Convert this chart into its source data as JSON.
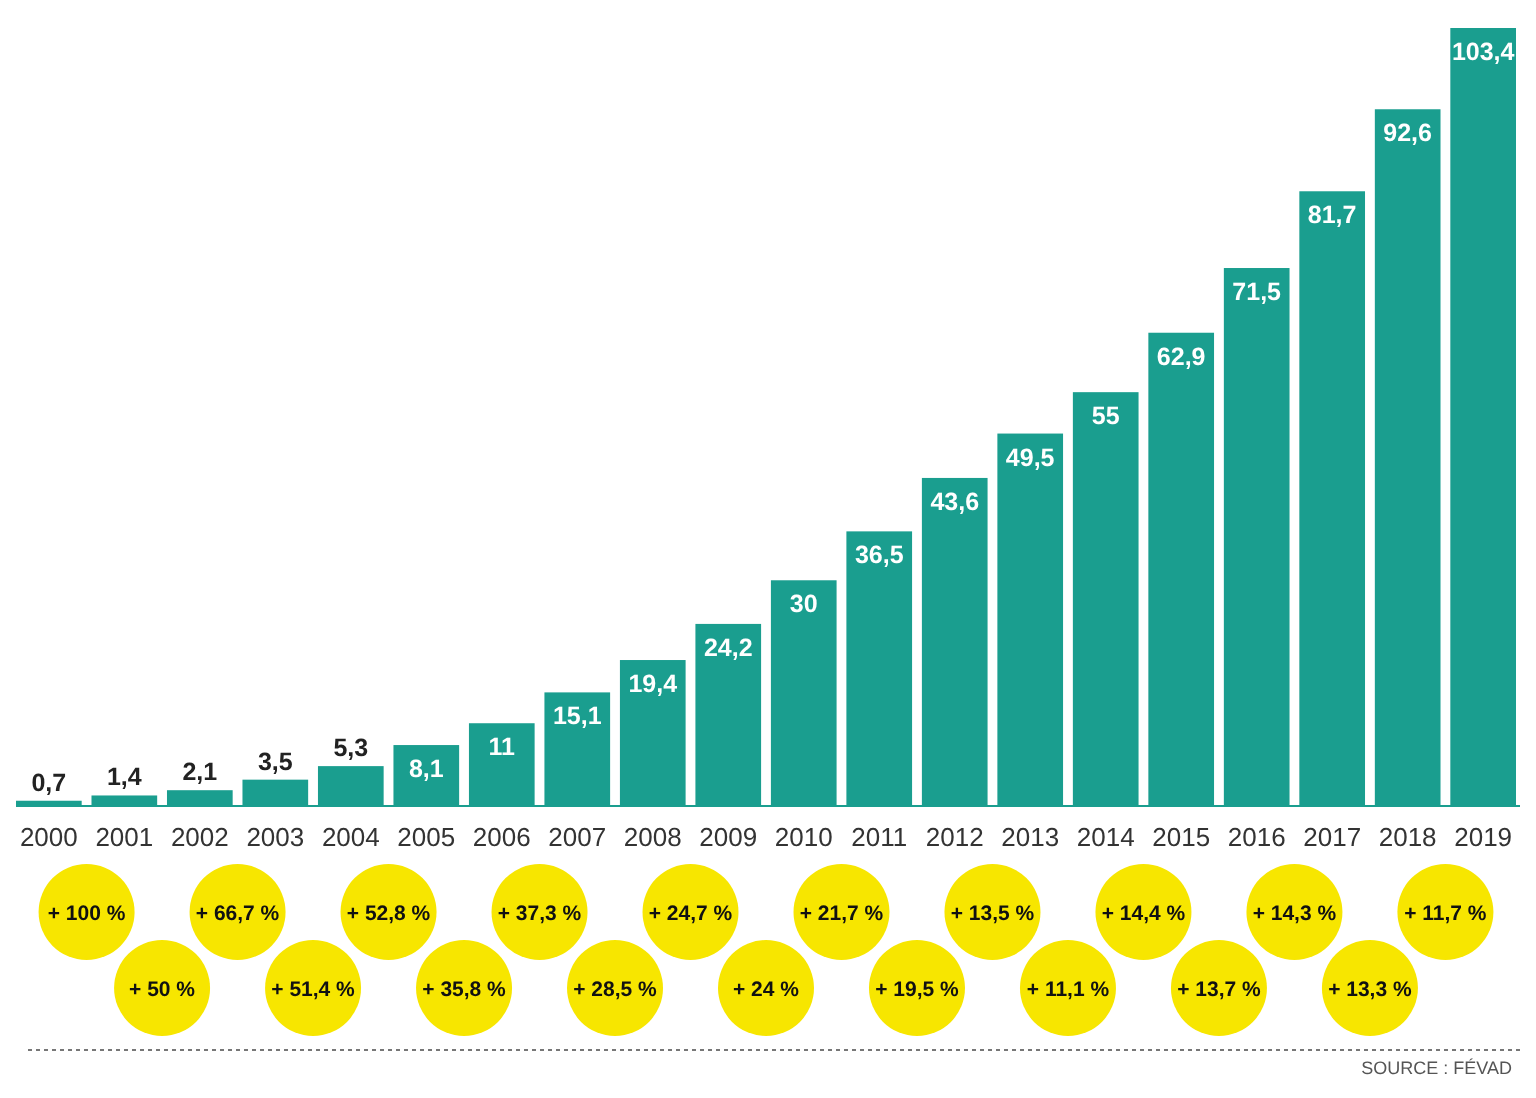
{
  "chart_data": {
    "type": "bar",
    "categories": [
      "2000",
      "2001",
      "2002",
      "2003",
      "2004",
      "2005",
      "2006",
      "2007",
      "2008",
      "2009",
      "2010",
      "2011",
      "2012",
      "2013",
      "2014",
      "2015",
      "2016",
      "2017",
      "2018",
      "2019"
    ],
    "values": [
      0.7,
      1.4,
      2.1,
      3.5,
      5.3,
      8.1,
      11,
      15.1,
      19.4,
      24.2,
      30,
      36.5,
      43.6,
      49.5,
      55,
      62.9,
      71.5,
      81.7,
      92.6,
      103.4
    ],
    "value_labels": [
      "0,7",
      "1,4",
      "2,1",
      "3,5",
      "5,3",
      "8,1",
      "11",
      "15,1",
      "19,4",
      "24,2",
      "30",
      "36,5",
      "43,6",
      "49,5",
      "55",
      "62,9",
      "71,5",
      "81,7",
      "92,6",
      "103,4"
    ],
    "color": "#1a9e8f",
    "annotations": [
      "+ 100 %",
      "+ 50 %",
      "+ 66,7 %",
      "+ 51,4 %",
      "+ 52,8 %",
      "+ 35,8 %",
      "+ 37,3 %",
      "+ 28,5 %",
      "+ 24,7 %",
      "+ 24 %",
      "+ 21,7 %",
      "+ 19,5 %",
      "+ 13,5 %",
      "+ 11,1 %",
      "+ 14,4 %",
      "+ 13,7 %",
      "+ 14,3 %",
      "+ 13,3 %",
      "+ 11,7 %",
      "SOURCE : FÉVAD"
    ]
  }
}
